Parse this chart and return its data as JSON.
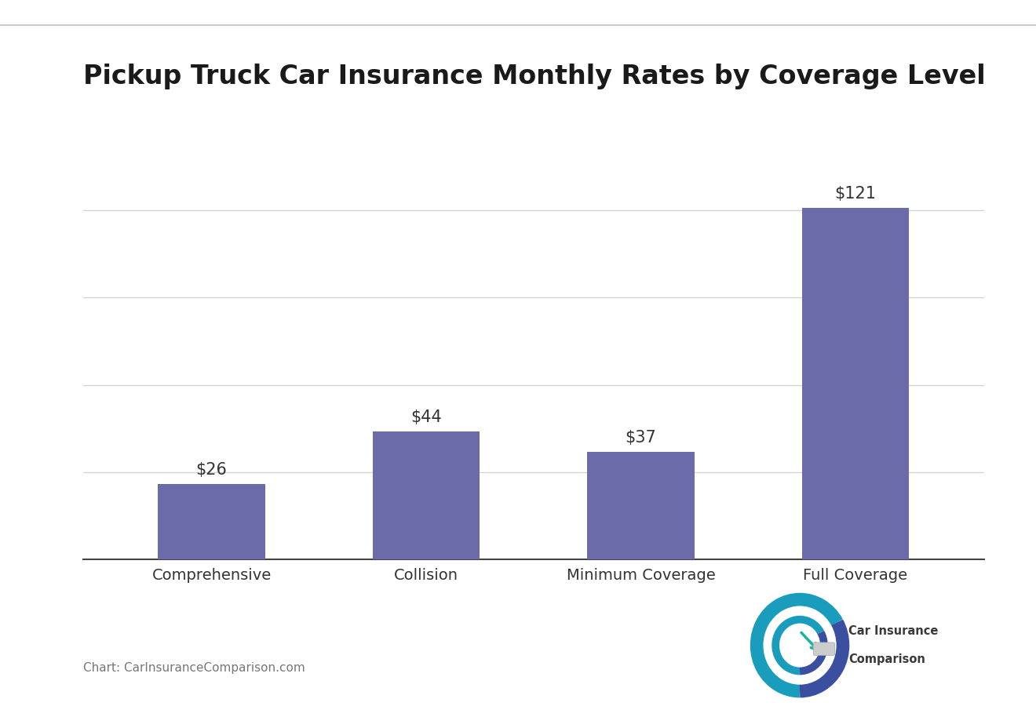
{
  "title": "Pickup Truck Car Insurance Monthly Rates by Coverage Level",
  "categories": [
    "Comprehensive",
    "Collision",
    "Minimum Coverage",
    "Full Coverage"
  ],
  "values": [
    26,
    44,
    37,
    121
  ],
  "bar_color": "#6b6baa",
  "background_color": "#ffffff",
  "title_fontsize": 24,
  "annotation_fontsize": 15,
  "value_labels": [
    "$26",
    "$44",
    "$37",
    "$121"
  ],
  "source_text": "Chart: CarInsuranceComparison.com",
  "ylim": [
    0,
    148
  ],
  "grid_color": "#d5d5d5",
  "top_line_color": "#cccccc",
  "xtick_fontsize": 14,
  "source_fontsize": 11
}
